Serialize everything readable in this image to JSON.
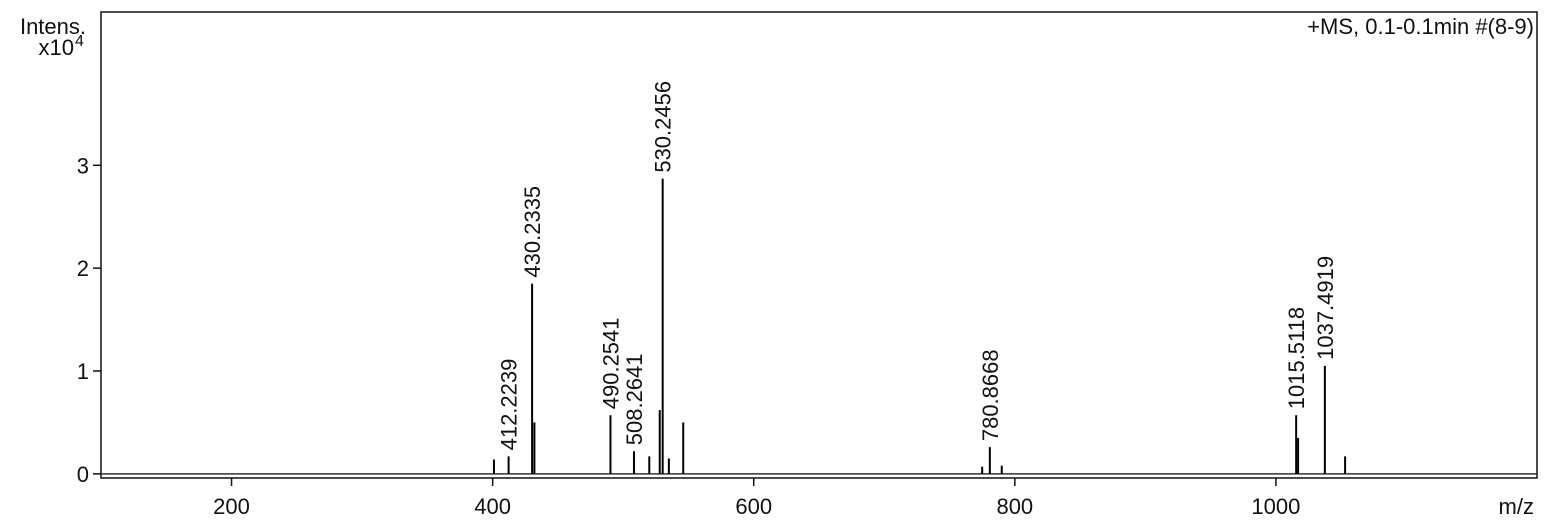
{
  "chart_data": {
    "type": "spectrum",
    "annotation": "+MS, 0.1-0.1min #(8-9)",
    "y_label": "Intens.",
    "y_multiplier": "x10",
    "y_multiplier_exponent": "4",
    "x_label": "m/z",
    "color": "#000000",
    "xlim": [
      100,
      1200
    ],
    "xticks": [
      200,
      400,
      600,
      800,
      1000
    ],
    "ylim": [
      -0.04,
      4.49
    ],
    "yticks": [
      0,
      1,
      2,
      3
    ],
    "peaks": {
      "x": [
        412.2239,
        430.2335,
        490.2541,
        508.2641,
        530.2456,
        780.8668,
        1015.5118,
        1037.4919
      ],
      "values": [
        0.17,
        1.85,
        0.57,
        0.22,
        2.87,
        0.26,
        0.57,
        1.05
      ]
    },
    "minor_peaks": {
      "x": [
        401,
        432,
        520,
        528,
        535,
        546,
        775,
        790,
        1017,
        1053
      ],
      "values": [
        0.14,
        0.5,
        0.17,
        0.62,
        0.15,
        0.5,
        0.07,
        0.08,
        0.35,
        0.17
      ]
    }
  }
}
